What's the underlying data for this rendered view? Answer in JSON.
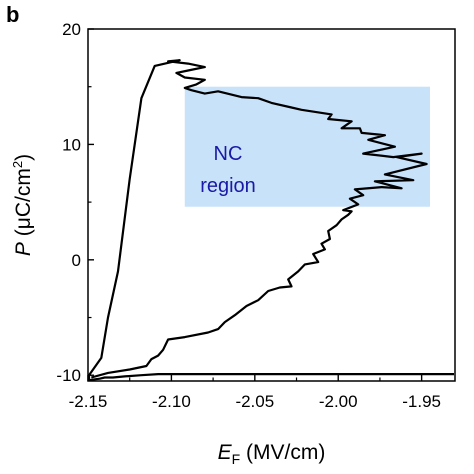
{
  "panel_label": "b",
  "chart_data": {
    "type": "line",
    "xlabel_main": "E",
    "xlabel_sub": "F",
    "xlabel_unit": " (MV/cm)",
    "ylabel_main": "P",
    "ylabel_unit_pre": " (μC/cm",
    "ylabel_unit_sup": "2",
    "ylabel_unit_post": ")",
    "xlim": [
      -2.15,
      -1.93
    ],
    "ylim": [
      -10.5,
      20
    ],
    "xticks": [
      -2.15,
      -2.1,
      -2.05,
      -2.0,
      -1.95
    ],
    "xtick_labels": [
      "-2.15",
      "-2.10",
      "-2.05",
      "-2.00",
      "-1.95"
    ],
    "yticks": [
      -10,
      0,
      10,
      20
    ],
    "ytick_labels": [
      "-10",
      "0",
      "10",
      "20"
    ],
    "region": {
      "label_line1": "NC",
      "label_line2": "region",
      "x_range": [
        -2.092,
        -1.945
      ],
      "y_range": [
        4.6,
        15.0
      ],
      "color": "#c8e2fa"
    },
    "line_color": "#000000",
    "series": [
      {
        "x": [
          -2.148,
          -2.138,
          -2.125,
          -2.115,
          -2.112,
          -2.108,
          -2.105,
          -2.102,
          -2.092,
          -2.078,
          -2.072,
          -2.068,
          -2.062,
          -2.055,
          -2.048,
          -2.042,
          -2.035,
          -2.028,
          -2.03,
          -2.024,
          -2.02,
          -2.012,
          -2.015,
          -2.008,
          -2.01,
          -2.005,
          -2.006,
          -2.001,
          -1.998,
          -1.994,
          -1.992,
          -1.997,
          -1.988,
          -1.993,
          -1.985,
          -1.99,
          -1.974,
          -1.962,
          -1.978,
          -1.955,
          -1.972,
          -1.947,
          -1.965,
          -1.95,
          -1.967,
          -1.985,
          -1.966,
          -1.982,
          -1.972,
          -1.986,
          -1.987,
          -1.998,
          -1.992,
          -2.006,
          -2.004,
          -2.022,
          -2.028,
          -2.04,
          -2.048,
          -2.058,
          -2.072,
          -2.08,
          -2.088,
          -2.092,
          -2.085,
          -2.08,
          -2.092,
          -2.097,
          -2.09,
          -2.08,
          -2.09,
          -2.102,
          -2.095,
          -2.11,
          -2.118,
          -2.125,
          -2.132,
          -2.138,
          -2.142,
          -2.15,
          -2.16,
          -2.148,
          -2.143,
          -2.14,
          -2.135,
          -2.128,
          -2.118,
          -2.108,
          -2.098,
          -2.07,
          -2.03,
          -2.0,
          -1.97,
          -1.945,
          -1.93
        ],
        "y": [
          -10.2,
          -9.8,
          -9.5,
          -9.2,
          -8.6,
          -8.3,
          -7.8,
          -6.9,
          -6.7,
          -6.3,
          -6.0,
          -5.4,
          -4.8,
          -4.0,
          -3.5,
          -2.7,
          -2.4,
          -2.3,
          -1.7,
          -1.0,
          -0.4,
          -0.2,
          0.5,
          0.9,
          1.4,
          1.8,
          2.5,
          3.0,
          3.5,
          3.9,
          4.2,
          4.3,
          4.8,
          5.3,
          5.6,
          6.1,
          6.3,
          6.2,
          6.8,
          6.9,
          7.4,
          8.3,
          8.9,
          9.2,
          8.9,
          9.2,
          9.8,
          10.4,
          10.8,
          11.0,
          11.4,
          11.4,
          12.0,
          12.2,
          12.6,
          13.0,
          13.2,
          13.6,
          14.0,
          14.1,
          14.6,
          14.4,
          14.7,
          14.9,
          15.2,
          15.6,
          15.8,
          16.2,
          16.4,
          16.7,
          17.0,
          17.2,
          17.3,
          16.8,
          14.0,
          7.0,
          -1.0,
          -5.0,
          -8.5,
          -10.0,
          -10.5,
          -10.4,
          -10.3,
          -10.2,
          -10.2,
          -10.1,
          -10.0,
          -9.9,
          -9.9,
          -9.9,
          -9.9,
          -9.9,
          -9.9,
          -9.9,
          -9.9
        ]
      }
    ]
  }
}
